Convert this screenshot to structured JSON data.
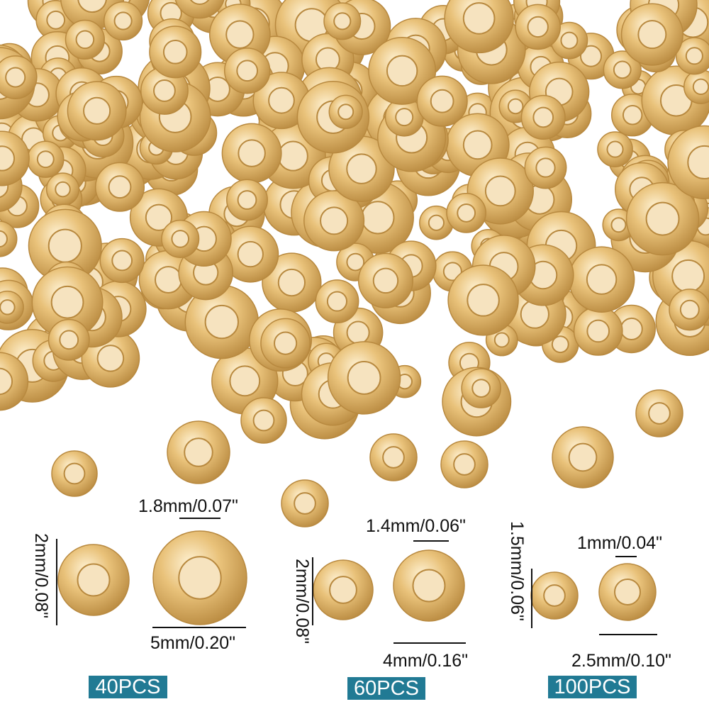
{
  "colors": {
    "badge": "#217a94",
    "bead_gold": "#e9c27a",
    "bead_highlight": "#fff3d6",
    "bead_shadow": "#b8893f"
  },
  "sets": [
    {
      "hole": "1.8mm/0.07\"",
      "height": "2mm/0.08\"",
      "diameter": "5mm/0.20\"",
      "count": "40PCS"
    },
    {
      "hole": "1.4mm/0.06\"",
      "height": "2mm/0.08\"",
      "diameter": "4mm/0.16\"",
      "count": "60PCS"
    },
    {
      "hole": "1mm/0.04\"",
      "height": "1.5mm/0.06\"",
      "diameter": "2.5mm/0.10\"",
      "count": "100PCS"
    }
  ]
}
